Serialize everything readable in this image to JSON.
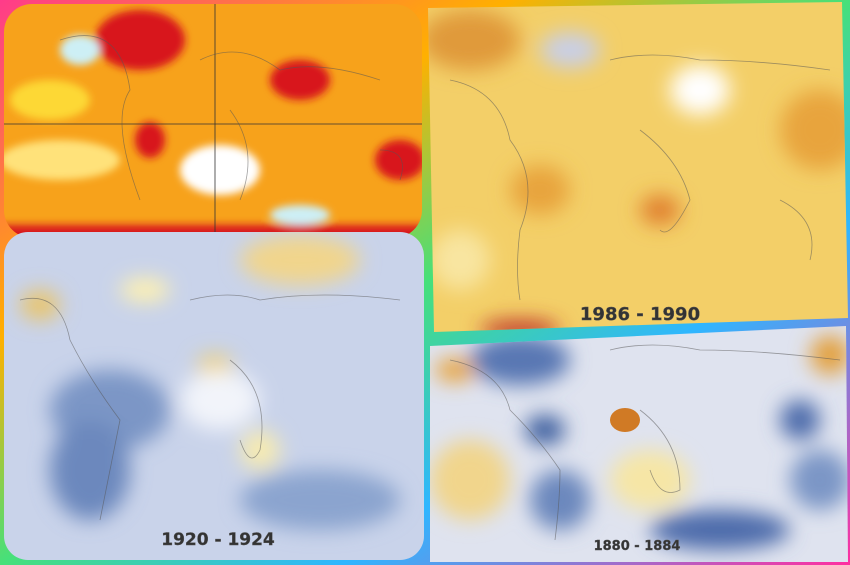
{
  "maps": {
    "top_right": {
      "caption": "1986 - 1990"
    },
    "bottom_left": {
      "caption": "1920 - 1924"
    },
    "bottom_right": {
      "caption": "1880 - 1884"
    }
  }
}
